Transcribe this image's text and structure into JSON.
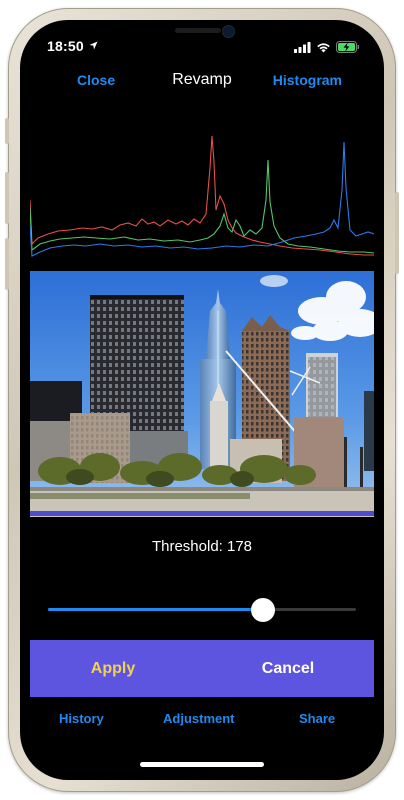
{
  "status_bar": {
    "time": "18:50",
    "location_icon": "location-arrow-icon",
    "signal_icon": "cellular-signal-icon",
    "wifi_icon": "wifi-icon",
    "battery_icon": "battery-charging-icon"
  },
  "nav": {
    "close_label": "Close",
    "title": "Revamp",
    "histogram_label": "Histogram"
  },
  "histogram": {
    "channels": [
      "red",
      "green",
      "blue"
    ],
    "colors": {
      "red": "#e4504a",
      "green": "#56c46a",
      "blue": "#2d7be8"
    }
  },
  "photo": {
    "description_icon": "city-skyline-photo"
  },
  "threshold": {
    "label": "Threshold: 178",
    "value": 178,
    "max": 255
  },
  "actions": {
    "apply_label": "Apply",
    "cancel_label": "Cancel"
  },
  "tabs": {
    "history_label": "History",
    "adjustment_label": "Adjustment",
    "share_label": "Share"
  },
  "colors": {
    "accent": "#1e8bf0",
    "action_bar": "#5d55e0",
    "apply_text": "#f4d34a"
  }
}
